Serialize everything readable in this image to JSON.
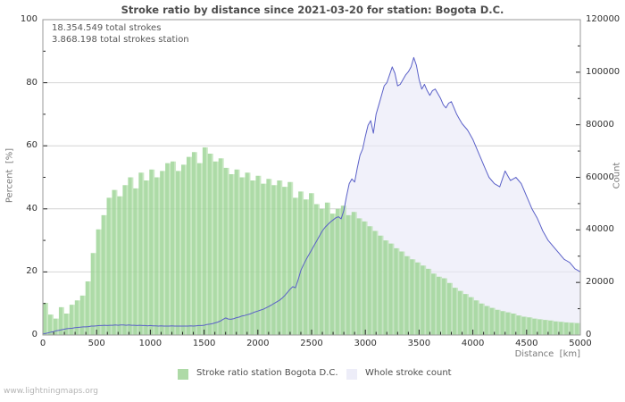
{
  "watermark": "www.lightningmaps.org",
  "colors": {
    "grid": "#d4d4d4",
    "frame": "#9a9a9a",
    "tick": "#222222",
    "green_fill": "rgba(162,214,155,0.88)",
    "green_fill_light": "rgba(183,224,175,0.72)",
    "count_fill": "rgba(232,232,247,0.62)",
    "count_line": "#5a60c8"
  },
  "legend": [
    {
      "label": "Stroke ratio station Bogota D.C.",
      "swatch": "#aedaa7"
    },
    {
      "label": "Whole stroke count",
      "swatch": "#ededf8"
    }
  ],
  "chart_data": {
    "type": "area",
    "title": "Stroke ratio by distance since 2021-03-20 for station: Bogota D.C.",
    "annotations": [
      "18.354.549 total strokes",
      "3.868.198 total strokes station"
    ],
    "xlabel": "Distance  [km]",
    "ylabel": "Percent  [%]",
    "y2label": "Count",
    "x_range": [
      0,
      5000
    ],
    "y_range": [
      0,
      100
    ],
    "y2_range": [
      0,
      120000
    ],
    "x_ticks": [
      0,
      500,
      1000,
      1500,
      2000,
      2500,
      3000,
      3500,
      4000,
      4500,
      5000
    ],
    "x_minor_step": 100,
    "y_ticks": [
      0,
      20,
      40,
      60,
      80,
      100
    ],
    "y_minor_step": 10,
    "y2_ticks": [
      0,
      20000,
      40000,
      60000,
      80000,
      100000,
      120000
    ],
    "y2_minor_step": 10000,
    "grid": "horizontal",
    "legend_position": "bottom",
    "series": [
      {
        "name": "Stroke ratio station Bogota D.C.",
        "style": "bars",
        "axis": "y",
        "unit": "%",
        "x_start": 0,
        "x_step": 50,
        "values": [
          10.2,
          6.5,
          5.2,
          8.8,
          6.8,
          9.6,
          11,
          12.5,
          17,
          26,
          33.5,
          38,
          43.5,
          46,
          44,
          47.5,
          50,
          46.5,
          51.5,
          49,
          52.5,
          50,
          52,
          54.5,
          55,
          52,
          54,
          56.5,
          58,
          54.5,
          59.5,
          57.5,
          55,
          56,
          53,
          51,
          52.5,
          50,
          51.5,
          49,
          50.5,
          48,
          49.5,
          47.5,
          49,
          47,
          48.5,
          43.5,
          45.5,
          43,
          45,
          41.5,
          40,
          42,
          38.5,
          40,
          41,
          38,
          39,
          37,
          36,
          34.5,
          33,
          31.5,
          30,
          29,
          27.5,
          26.5,
          25,
          24,
          23,
          22,
          21,
          19.5,
          18.5,
          18,
          16.5,
          15,
          14,
          13,
          12,
          11,
          10,
          9.2,
          8.6,
          8,
          7.6,
          7.2,
          6.8,
          6.2,
          5.8,
          5.6,
          5.2,
          5,
          4.8,
          4.6,
          4.3,
          4.2,
          4,
          3.9,
          3.8
        ]
      },
      {
        "name": "Whole stroke count",
        "style": "area-line",
        "axis": "y2",
        "unit": "strokes",
        "x_start": 0,
        "x_step": 25,
        "values": [
          500,
          600,
          800,
          1100,
          1300,
          1600,
          1800,
          2000,
          2200,
          2400,
          2500,
          2600,
          2800,
          2900,
          3000,
          3100,
          3100,
          3200,
          3400,
          3400,
          3500,
          3600,
          3600,
          3700,
          3600,
          3700,
          3700,
          3800,
          3700,
          3800,
          3800,
          3700,
          3800,
          3700,
          3700,
          3600,
          3700,
          3600,
          3600,
          3500,
          3600,
          3500,
          3500,
          3400,
          3500,
          3400,
          3400,
          3400,
          3500,
          3400,
          3400,
          3400,
          3400,
          3400,
          3400,
          3500,
          3400,
          3500,
          3600,
          3600,
          3700,
          4000,
          4100,
          4300,
          4600,
          4900,
          5300,
          5900,
          6500,
          6100,
          6000,
          6200,
          6600,
          6800,
          7200,
          7400,
          7700,
          8000,
          8400,
          8800,
          9100,
          9500,
          9800,
          10300,
          10800,
          11400,
          12000,
          12600,
          13200,
          14000,
          15000,
          16200,
          17400,
          18400,
          18000,
          21000,
          24600,
          26800,
          28800,
          30600,
          32400,
          34200,
          36000,
          37800,
          39600,
          41000,
          42000,
          43000,
          43800,
          44600,
          45000,
          44200,
          47400,
          52800,
          57600,
          59400,
          58200,
          63600,
          68400,
          70800,
          75600,
          79800,
          81600,
          76800,
          84000,
          87600,
          91200,
          94800,
          96000,
          99000,
          102000,
          99600,
          94800,
          95400,
          97200,
          99000,
          100200,
          102000,
          105600,
          102600,
          97200,
          93600,
          95400,
          93000,
          91200,
          93000,
          93600,
          91800,
          90000,
          87600,
          86400,
          88200,
          88800,
          86400,
          84000,
          82200,
          80400,
          79200,
          78000,
          76200,
          74400,
          72000,
          69600,
          67200,
          64800,
          62400,
          60000,
          58800,
          57600,
          57000,
          56400,
          59400,
          62400,
          60600,
          58800,
          59400,
          60000,
          58800,
          57600,
          55200,
          52800,
          50400,
          48000,
          46200,
          44400,
          42000,
          39600,
          37800,
          36000,
          34800,
          33600,
          32400,
          31200,
          30000,
          28800,
          28200,
          27600,
          26400,
          25200,
          24600,
          24000
        ]
      }
    ]
  }
}
